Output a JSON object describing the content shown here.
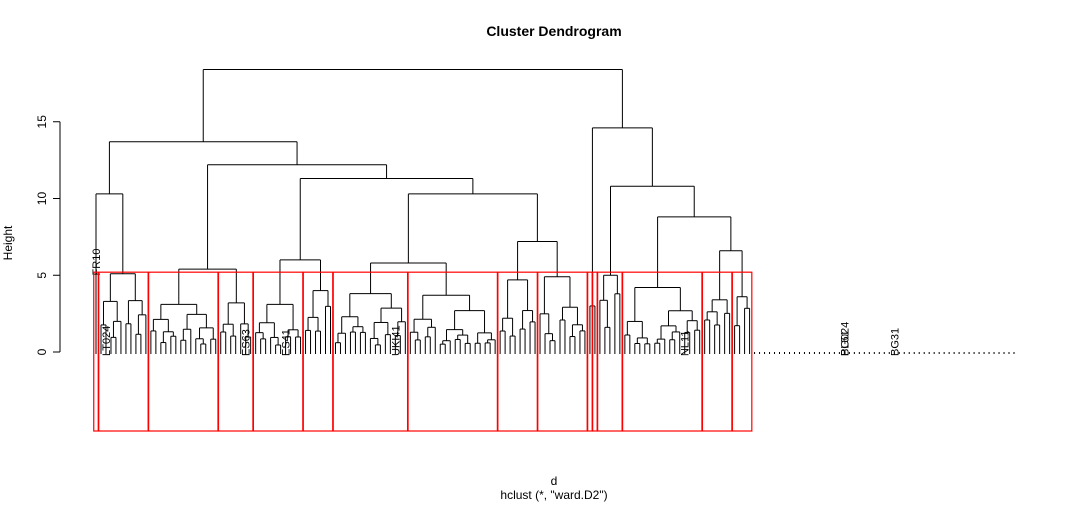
{
  "chart_data": {
    "type": "dendrogram",
    "title": "Cluster Dendrogram",
    "ylabel": "Height",
    "xlabel": "d",
    "subtitle": "hclust (*, \"ward.D2\")",
    "ylim": [
      0,
      19
    ],
    "y_ticks": [
      0,
      5,
      10,
      15
    ],
    "leaf_count": 185,
    "highlight_color": "#ff0000",
    "visible_leaf_labels": [
      "FR10",
      "NL11",
      "LT024",
      "BG024",
      "ES63",
      "ES41",
      "PL51",
      "BG31",
      "UKI41"
    ],
    "main_merges": [
      {
        "name": "root",
        "height": 18.4
      },
      {
        "name": "left",
        "height": 13.7
      },
      {
        "name": "right",
        "height": 14.6
      },
      {
        "name": "L-mid",
        "height": 12.2
      },
      {
        "name": "L-sub",
        "height": 11.3
      },
      {
        "name": "L-sub2",
        "height": 10.3
      },
      {
        "name": "FR10-join",
        "height": 10.3
      },
      {
        "name": "R-sub",
        "height": 10.8
      },
      {
        "name": "R-sub2",
        "height": 8.8
      },
      {
        "name": "L-sub3",
        "height": 7.2
      },
      {
        "name": "R-sub3",
        "height": 6.6
      },
      {
        "name": "L-sub4",
        "height": 5.8
      },
      {
        "name": "L-sub5",
        "height": 5.4
      }
    ],
    "cut_clusters": [
      {
        "leaves": 1,
        "height": 8.4
      },
      {
        "leaves": 10,
        "height": 5.1
      },
      {
        "leaves": 14,
        "height": 3.1
      },
      {
        "leaves": 7,
        "height": 3.2
      },
      {
        "leaves": 10,
        "height": 3.1
      },
      {
        "leaves": 6,
        "height": 4.0
      },
      {
        "leaves": 15,
        "height": 3.8
      },
      {
        "leaves": 18,
        "height": 3.7
      },
      {
        "leaves": 8,
        "height": 4.7
      },
      {
        "leaves": 10,
        "height": 4.9
      },
      {
        "leaves": 1,
        "height": 2.0
      },
      {
        "leaves": 1,
        "height": 1.0
      },
      {
        "leaves": 5,
        "height": 5.0
      },
      {
        "leaves": 16,
        "height": 4.2
      },
      {
        "leaves": 6,
        "height": 3.4
      },
      {
        "leaves": 4,
        "height": 3.6
      }
    ],
    "grid": false,
    "legend": "none"
  }
}
